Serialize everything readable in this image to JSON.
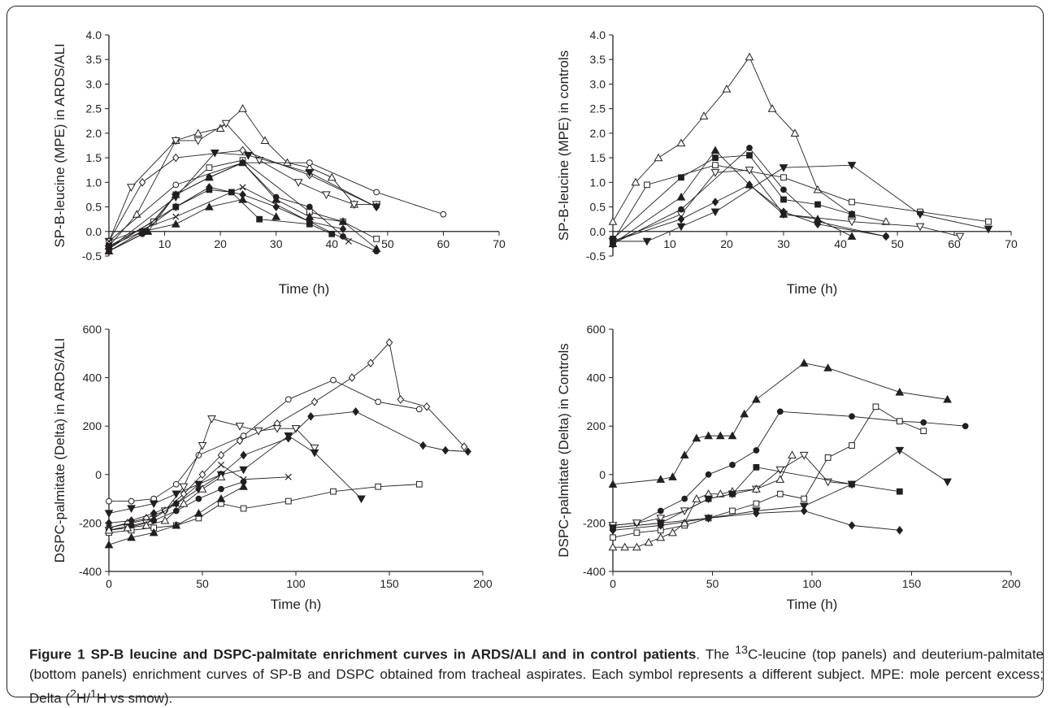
{
  "caption": {
    "label": "Figure 1",
    "title": "SP-B leucine and DSPC-palmitate enrichment curves in ARDS/ALI and in control patients",
    "t1": ". The ",
    "sup1": "13",
    "t2": "C-leucine (top panels) and deuterium-palmitate (bottom panels) enrichment curves of SP-B and DSPC obtained from tracheal aspirates. Each symbol represents a different subject. MPE: mole percent excess; Delta (",
    "sup2": "2",
    "t3": "H/",
    "sup3": "1",
    "t4": "H vs smow)."
  },
  "chart_data": [
    {
      "type": "line",
      "xlabel": "Time (h)",
      "ylabel": "SP-B-leucine (MPE) in ARDS/ALI",
      "xlim": [
        0,
        70
      ],
      "ylim": [
        -0.5,
        4.0
      ],
      "xticks": [
        0,
        10,
        20,
        30,
        40,
        50,
        60,
        70
      ],
      "yticks": [
        -0.5,
        0.0,
        0.5,
        1.0,
        1.5,
        2.0,
        2.5,
        3.0,
        3.5,
        4.0
      ],
      "ytick_decimals": 1,
      "series": [
        {
          "marker": "triangle-up-open",
          "x": [
            0,
            5,
            12,
            16,
            20,
            24,
            28,
            32,
            36,
            40,
            44
          ],
          "y": [
            -0.3,
            0.35,
            1.85,
            2.0,
            2.1,
            2.5,
            1.85,
            1.4,
            1.3,
            1.1,
            0.55
          ]
        },
        {
          "marker": "triangle-down-open",
          "x": [
            0,
            4,
            12,
            16,
            21,
            27,
            34,
            39,
            44,
            48
          ],
          "y": [
            -0.2,
            0.9,
            1.85,
            1.85,
            2.2,
            1.45,
            1.0,
            0.75,
            0.55,
            0.55
          ]
        },
        {
          "marker": "diamond-open",
          "x": [
            0,
            6,
            12,
            24,
            36,
            48
          ],
          "y": [
            -0.2,
            1.0,
            1.5,
            1.65,
            1.15,
            0.5
          ]
        },
        {
          "marker": "triangle-down-filled",
          "x": [
            0,
            12,
            19,
            25,
            36,
            48
          ],
          "y": [
            -0.35,
            0.7,
            1.6,
            1.55,
            1.2,
            0.5
          ]
        },
        {
          "marker": "circle-open",
          "x": [
            0,
            12,
            24,
            36,
            48,
            60
          ],
          "y": [
            -0.2,
            0.95,
            1.4,
            1.4,
            0.8,
            0.35
          ]
        },
        {
          "marker": "square-open",
          "x": [
            0,
            8,
            12,
            18,
            24,
            36,
            42,
            48
          ],
          "y": [
            -0.3,
            0.2,
            0.75,
            1.3,
            1.45,
            0.4,
            0.2,
            -0.15
          ]
        },
        {
          "marker": "diamond-filled",
          "x": [
            0,
            12,
            18,
            24,
            30,
            36,
            42
          ],
          "y": [
            -0.35,
            0.5,
            0.9,
            0.75,
            0.5,
            0.2,
            0.05
          ]
        },
        {
          "marker": "circle-filled",
          "x": [
            0,
            6,
            12,
            18,
            24,
            30,
            36,
            42,
            48
          ],
          "y": [
            -0.4,
            -0.05,
            0.75,
            1.1,
            1.4,
            0.7,
            0.5,
            -0.1,
            -0.4
          ]
        },
        {
          "marker": "triangle-up-filled",
          "x": [
            0,
            7,
            12,
            18,
            24,
            30,
            36,
            42,
            48
          ],
          "y": [
            -0.4,
            0.0,
            0.75,
            1.1,
            1.4,
            0.65,
            0.3,
            0.2,
            -0.35
          ]
        },
        {
          "marker": "square-filled",
          "x": [
            0,
            6,
            12,
            18,
            22,
            27,
            36,
            40
          ],
          "y": [
            -0.3,
            0.0,
            0.5,
            0.85,
            0.8,
            0.25,
            0.15,
            -0.05
          ]
        },
        {
          "marker": "cross",
          "x": [
            0,
            12,
            24,
            36,
            43
          ],
          "y": [
            -0.2,
            0.3,
            0.9,
            0.2,
            -0.2
          ]
        },
        {
          "marker": "triangle-up-filled",
          "x": [
            0,
            6,
            12,
            18,
            24,
            30
          ],
          "y": [
            -0.4,
            0.0,
            0.15,
            0.5,
            0.65,
            0.3
          ]
        }
      ]
    },
    {
      "type": "line",
      "xlabel": "Time (h)",
      "ylabel": "SP-B-leucine (MPE) in controls",
      "xlim": [
        0,
        70
      ],
      "ylim": [
        -0.5,
        4.0
      ],
      "xticks": [
        0,
        10,
        20,
        30,
        40,
        50,
        60,
        70
      ],
      "yticks": [
        -0.5,
        0.0,
        0.5,
        1.0,
        1.5,
        2.0,
        2.5,
        3.0,
        3.5,
        4.0
      ],
      "ytick_decimals": 1,
      "series": [
        {
          "marker": "triangle-up-open",
          "x": [
            0,
            4,
            8,
            12,
            16,
            20,
            24,
            28,
            32,
            36,
            42,
            48
          ],
          "y": [
            0.2,
            1.0,
            1.5,
            1.8,
            2.35,
            2.9,
            3.55,
            2.5,
            2.0,
            0.85,
            0.35,
            0.2
          ]
        },
        {
          "marker": "square-open",
          "x": [
            0,
            6,
            18,
            30,
            42,
            54,
            66
          ],
          "y": [
            -0.2,
            0.95,
            1.35,
            1.1,
            0.6,
            0.4,
            0.2
          ]
        },
        {
          "marker": "triangle-down-open",
          "x": [
            0,
            12,
            18,
            24,
            30,
            42,
            54,
            61
          ],
          "y": [
            -0.2,
            0.35,
            1.2,
            1.25,
            0.35,
            0.2,
            0.1,
            -0.1
          ]
        },
        {
          "marker": "triangle-down-filled",
          "x": [
            0,
            6,
            12,
            18,
            30,
            42,
            54,
            66
          ],
          "y": [
            -0.2,
            -0.2,
            0.1,
            0.4,
            1.3,
            1.35,
            0.35,
            0.05
          ]
        },
        {
          "marker": "circle-filled",
          "x": [
            0,
            12,
            24,
            30,
            36,
            48
          ],
          "y": [
            -0.25,
            0.45,
            1.7,
            0.85,
            0.2,
            -0.1
          ]
        },
        {
          "marker": "square-filled",
          "x": [
            0,
            12,
            18,
            24,
            30,
            36,
            42
          ],
          "y": [
            -0.15,
            1.1,
            1.5,
            1.55,
            0.65,
            0.55,
            0.35
          ]
        },
        {
          "marker": "triangle-up-filled",
          "x": [
            0,
            12,
            18,
            24,
            30,
            36,
            42
          ],
          "y": [
            -0.25,
            0.7,
            1.65,
            0.95,
            0.35,
            0.25,
            -0.1
          ]
        },
        {
          "marker": "diamond-filled",
          "x": [
            0,
            12,
            18,
            24,
            30,
            36,
            48
          ],
          "y": [
            -0.2,
            0.25,
            0.6,
            0.95,
            0.4,
            0.15,
            -0.1
          ]
        }
      ]
    },
    {
      "type": "line",
      "xlabel": "Time (h)",
      "ylabel": "DSPC-palmitate (Delta) in ARDS/ALI",
      "xlim": [
        0,
        200
      ],
      "ylim": [
        -400,
        600
      ],
      "xticks": [
        0,
        50,
        100,
        150,
        200
      ],
      "yticks": [
        -400,
        -200,
        0,
        200,
        400,
        600
      ],
      "ytick_decimals": 0,
      "series": [
        {
          "marker": "diamond-open",
          "x": [
            0,
            10,
            20,
            30,
            40,
            50,
            60,
            70,
            90,
            110,
            130,
            140,
            150,
            156,
            170,
            190
          ],
          "y": [
            -220,
            -200,
            -180,
            -150,
            -80,
            0,
            80,
            140,
            210,
            300,
            400,
            460,
            545,
            310,
            280,
            115
          ]
        },
        {
          "marker": "circle-open",
          "x": [
            0,
            12,
            24,
            36,
            48,
            72,
            96,
            120,
            144,
            166
          ],
          "y": [
            -110,
            -110,
            -100,
            -40,
            80,
            160,
            310,
            390,
            300,
            270
          ]
        },
        {
          "marker": "triangle-down-open",
          "x": [
            0,
            10,
            20,
            30,
            40,
            50,
            55,
            70,
            80,
            90,
            100,
            110
          ],
          "y": [
            -230,
            -220,
            -200,
            -150,
            -50,
            120,
            230,
            200,
            180,
            190,
            190,
            110
          ]
        },
        {
          "marker": "triangle-down-filled",
          "x": [
            0,
            12,
            24,
            36,
            48,
            60,
            72,
            96,
            110,
            135
          ],
          "y": [
            -160,
            -140,
            -120,
            -80,
            -40,
            0,
            20,
            160,
            90,
            -100
          ]
        },
        {
          "marker": "diamond-filled",
          "x": [
            0,
            12,
            24,
            36,
            48,
            60,
            72,
            96,
            108,
            132,
            168,
            180,
            192
          ],
          "y": [
            -200,
            -190,
            -160,
            -120,
            -60,
            0,
            80,
            150,
            240,
            260,
            120,
            100,
            95
          ]
        },
        {
          "marker": "square-open",
          "x": [
            0,
            12,
            24,
            36,
            48,
            60,
            72,
            96,
            120,
            144,
            166
          ],
          "y": [
            -240,
            -230,
            -220,
            -210,
            -180,
            -120,
            -140,
            -110,
            -70,
            -50,
            -40
          ]
        },
        {
          "marker": "cross",
          "x": [
            0,
            12,
            24,
            36,
            48,
            60,
            72,
            96
          ],
          "y": [
            -220,
            -200,
            -180,
            -120,
            -40,
            40,
            -20,
            -10
          ]
        },
        {
          "marker": "triangle-up-filled",
          "x": [
            0,
            12,
            24,
            36,
            48,
            60,
            72
          ],
          "y": [
            -290,
            -260,
            -240,
            -210,
            -160,
            -100,
            -50
          ]
        },
        {
          "marker": "circle-filled",
          "x": [
            0,
            12,
            24,
            36,
            48,
            60,
            72
          ],
          "y": [
            -230,
            -210,
            -190,
            -150,
            -100,
            -60,
            -30
          ]
        },
        {
          "marker": "triangle-up-open",
          "x": [
            0,
            10,
            20,
            30,
            40,
            50,
            60
          ],
          "y": [
            -230,
            -220,
            -210,
            -190,
            -120,
            -60,
            -10
          ]
        }
      ]
    },
    {
      "type": "line",
      "xlabel": "Time (h)",
      "ylabel": "DSPC-palmitate (Delta) in Controls",
      "xlim": [
        0,
        200
      ],
      "ylim": [
        -400,
        600
      ],
      "xticks": [
        0,
        50,
        100,
        150,
        200
      ],
      "yticks": [
        -400,
        -200,
        0,
        200,
        400,
        600
      ],
      "ytick_decimals": 0,
      "series": [
        {
          "marker": "triangle-up-filled",
          "x": [
            0,
            24,
            30,
            36,
            42,
            48,
            54,
            60,
            66,
            72,
            96,
            108,
            144,
            168
          ],
          "y": [
            -40,
            -20,
            -10,
            80,
            150,
            160,
            160,
            160,
            250,
            310,
            460,
            440,
            340,
            310
          ]
        },
        {
          "marker": "circle-filled",
          "x": [
            0,
            12,
            24,
            36,
            48,
            60,
            72,
            84,
            120,
            144,
            156,
            177
          ],
          "y": [
            -210,
            -200,
            -150,
            -100,
            0,
            40,
            100,
            260,
            240,
            220,
            215,
            200
          ]
        },
        {
          "marker": "square-open",
          "x": [
            0,
            12,
            24,
            36,
            48,
            60,
            72,
            84,
            96,
            108,
            120,
            132,
            144,
            156
          ],
          "y": [
            -260,
            -240,
            -230,
            -210,
            -180,
            -150,
            -120,
            -80,
            -100,
            70,
            120,
            280,
            220,
            180
          ]
        },
        {
          "marker": "triangle-down-open",
          "x": [
            0,
            12,
            24,
            36,
            48,
            60,
            72,
            84,
            96,
            108,
            120
          ],
          "y": [
            -210,
            -200,
            -180,
            -150,
            -100,
            -80,
            -60,
            20,
            80,
            -30,
            -40
          ]
        },
        {
          "marker": "triangle-up-open",
          "x": [
            0,
            6,
            12,
            18,
            24,
            30,
            36,
            42,
            48,
            54,
            60,
            72,
            84,
            90
          ],
          "y": [
            -300,
            -300,
            -300,
            -280,
            -260,
            -240,
            -200,
            -100,
            -80,
            -80,
            -70,
            -60,
            -20,
            80
          ]
        },
        {
          "marker": "square-filled",
          "x": [
            0,
            24,
            48,
            60,
            72,
            120,
            144
          ],
          "y": [
            -220,
            -200,
            -100,
            -80,
            30,
            -40,
            -70
          ]
        },
        {
          "marker": "triangle-down-filled",
          "x": [
            0,
            24,
            48,
            72,
            96,
            120,
            144,
            168
          ],
          "y": [
            -220,
            -200,
            -180,
            -150,
            -130,
            -40,
            100,
            -30
          ]
        },
        {
          "marker": "diamond-filled",
          "x": [
            0,
            24,
            48,
            72,
            96,
            120,
            144
          ],
          "y": [
            -230,
            -210,
            -180,
            -160,
            -150,
            -210,
            -230
          ]
        }
      ]
    }
  ]
}
